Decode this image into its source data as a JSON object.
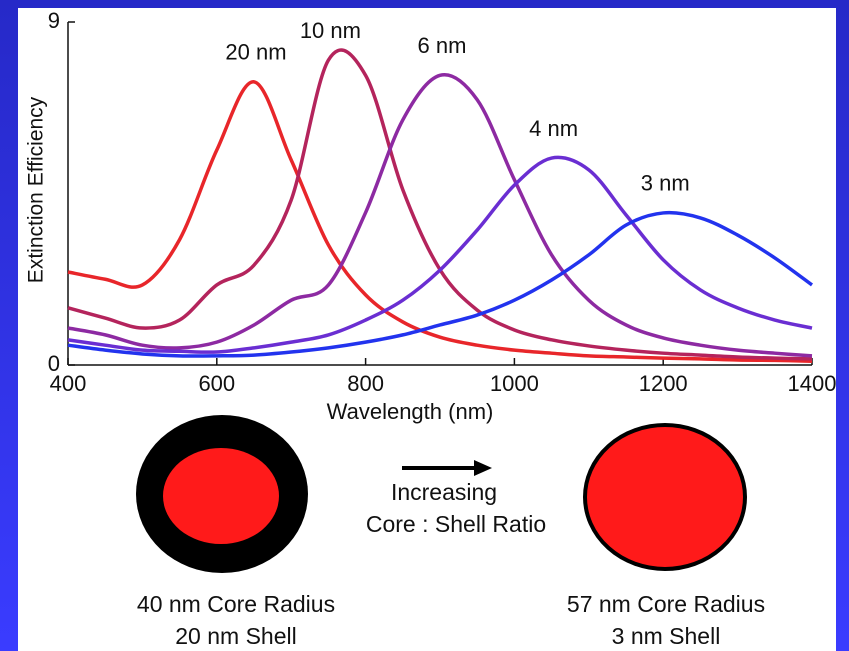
{
  "chart_data": {
    "type": "line",
    "xlabel": "Wavelength (nm)",
    "ylabel": "Extinction Efficiency",
    "x": [
      400,
      450,
      500,
      550,
      600,
      650,
      700,
      750,
      800,
      850,
      900,
      950,
      1000,
      1050,
      1100,
      1150,
      1200,
      1250,
      1300,
      1350,
      1400
    ],
    "series": [
      {
        "name": "20 nm",
        "color": "#e8262a",
        "values": [
          2.44,
          2.25,
          2.1,
          3.29,
          5.64,
          7.43,
          5.38,
          3.15,
          1.84,
          1.13,
          0.73,
          0.52,
          0.39,
          0.31,
          0.24,
          0.21,
          0.18,
          0.16,
          0.13,
          0.12,
          0.1
        ]
      },
      {
        "name": "10 nm",
        "color": "#b4245c",
        "values": [
          1.5,
          1.23,
          0.97,
          1.18,
          2.1,
          2.62,
          4.33,
          8.0,
          7.6,
          4.6,
          2.5,
          1.44,
          0.92,
          0.66,
          0.5,
          0.39,
          0.31,
          0.26,
          0.21,
          0.18,
          0.16
        ]
      },
      {
        "name": "6 nm",
        "color": "#8d2aa2",
        "values": [
          0.97,
          0.79,
          0.52,
          0.45,
          0.6,
          1.05,
          1.7,
          2.1,
          4.0,
          6.43,
          7.6,
          6.96,
          4.86,
          2.89,
          1.7,
          1.05,
          0.71,
          0.52,
          0.39,
          0.31,
          0.24
        ]
      },
      {
        "name": "4 nm",
        "color": "#6a2ed2",
        "values": [
          0.66,
          0.52,
          0.39,
          0.36,
          0.34,
          0.45,
          0.6,
          0.79,
          1.18,
          1.7,
          2.49,
          3.54,
          4.72,
          5.43,
          5.12,
          3.94,
          2.76,
          1.97,
          1.5,
          1.18,
          0.97
        ]
      },
      {
        "name": "3 nm",
        "color": "#2233ee",
        "values": [
          0.52,
          0.39,
          0.29,
          0.24,
          0.24,
          0.26,
          0.34,
          0.45,
          0.6,
          0.79,
          1.05,
          1.31,
          1.7,
          2.23,
          2.89,
          3.67,
          3.99,
          3.86,
          3.41,
          2.81,
          2.1
        ]
      }
    ],
    "xlim": [
      400,
      1400
    ],
    "ylim": [
      0,
      9
    ],
    "xticks": [
      400,
      600,
      800,
      1000,
      1200,
      1400
    ],
    "yticks": [
      0,
      9
    ],
    "grid": false
  },
  "diagram": {
    "arrow_text": [
      "Increasing",
      "Core : Shell Ratio"
    ],
    "left_caption": [
      "40 nm Core Radius",
      "20 nm Shell"
    ],
    "right_caption": [
      "57 nm Core Radius",
      "3 nm Shell"
    ]
  }
}
